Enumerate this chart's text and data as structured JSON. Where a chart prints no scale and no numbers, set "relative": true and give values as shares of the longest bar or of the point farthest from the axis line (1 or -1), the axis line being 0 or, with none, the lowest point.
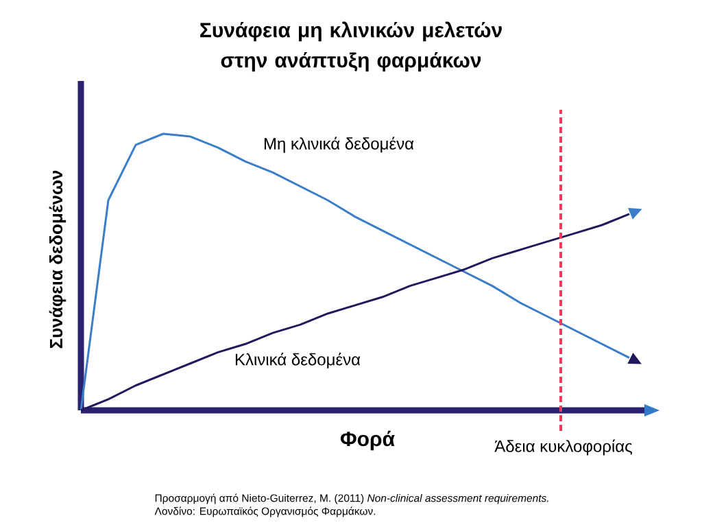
{
  "chart_data": {
    "type": "line",
    "title": "Συνάφεια μη κλινικών μελετών στην ανάπτυξη φαρμάκων",
    "xlabel": "Φορά",
    "ylabel": "Συνάφεια δεδομένων",
    "relative": true,
    "categories": [
      null,
      null,
      null,
      null,
      null,
      null,
      null,
      null,
      null,
      null,
      null,
      null,
      null,
      null,
      null,
      null,
      null,
      null,
      null,
      null,
      null
    ],
    "series": [
      {
        "name": "Μη κλινικά δεδομένα",
        "color": "#3a7dc8",
        "values": [
          0,
          0.76,
          0.96,
          1.0,
          0.99,
          0.95,
          0.9,
          0.86,
          0.81,
          0.76,
          0.7,
          0.65,
          0.6,
          0.55,
          0.5,
          0.45,
          0.39,
          0.34,
          0.29,
          0.24,
          0.19
        ]
      },
      {
        "name": "Κλινικά δεδομένα",
        "color": "#1f1a5e",
        "values": [
          0,
          0.04,
          0.09,
          0.13,
          0.17,
          0.21,
          0.24,
          0.28,
          0.31,
          0.35,
          0.38,
          0.41,
          0.45,
          0.48,
          0.51,
          0.55,
          0.58,
          0.61,
          0.64,
          0.67,
          0.71
        ]
      }
    ],
    "annotations": [
      "Άδεια κυκλοφορίας",
      "Προσαρμογή από Nieto-Guiterrez, M. (2011) *Non-clinical assessment requirements.*",
      "Λονδίνο: Ευρωπαϊκός Οργανισμός Φαρμάκων."
    ]
  }
}
